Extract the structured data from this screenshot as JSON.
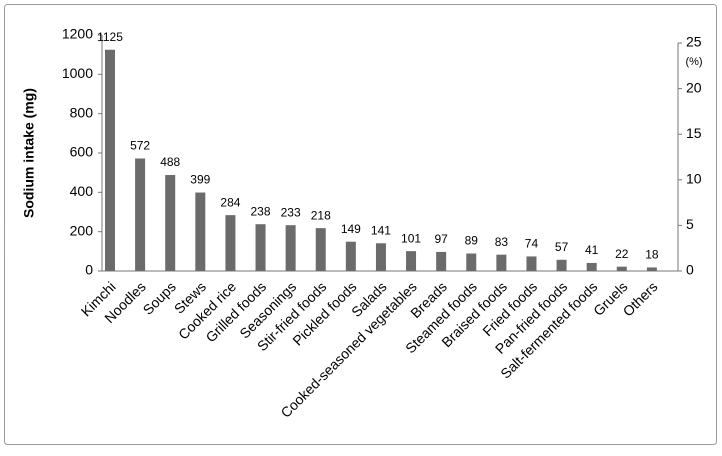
{
  "chart_data": {
    "type": "bar",
    "ylabel": "Sodium intake (mg)",
    "y2label": "(%)",
    "categories": [
      "Kimchi",
      "Noodles",
      "Soups",
      "Stews",
      "Cooked rice",
      "Grilled foods",
      "Seasonings",
      "Stir-fried foods",
      "Pickled foods",
      "Salads",
      "Cooked-seasoned vegetables",
      "Breads",
      "Steamed foods",
      "Braised foods",
      "Fried foods",
      "Pan-fried foods",
      "Salt-fermented foods",
      "Gruels",
      "Others"
    ],
    "values": [
      1125,
      572,
      488,
      399,
      284,
      238,
      233,
      218,
      149,
      141,
      101,
      97,
      89,
      83,
      74,
      57,
      41,
      22,
      18
    ],
    "color": "#6b6b6b",
    "ylim": [
      0,
      1200
    ],
    "yticks": [
      0,
      200,
      400,
      600,
      800,
      1000,
      1200
    ],
    "y2lim": [
      0,
      25
    ],
    "y2ticks": [
      0,
      5,
      10,
      15,
      20,
      25
    ]
  }
}
